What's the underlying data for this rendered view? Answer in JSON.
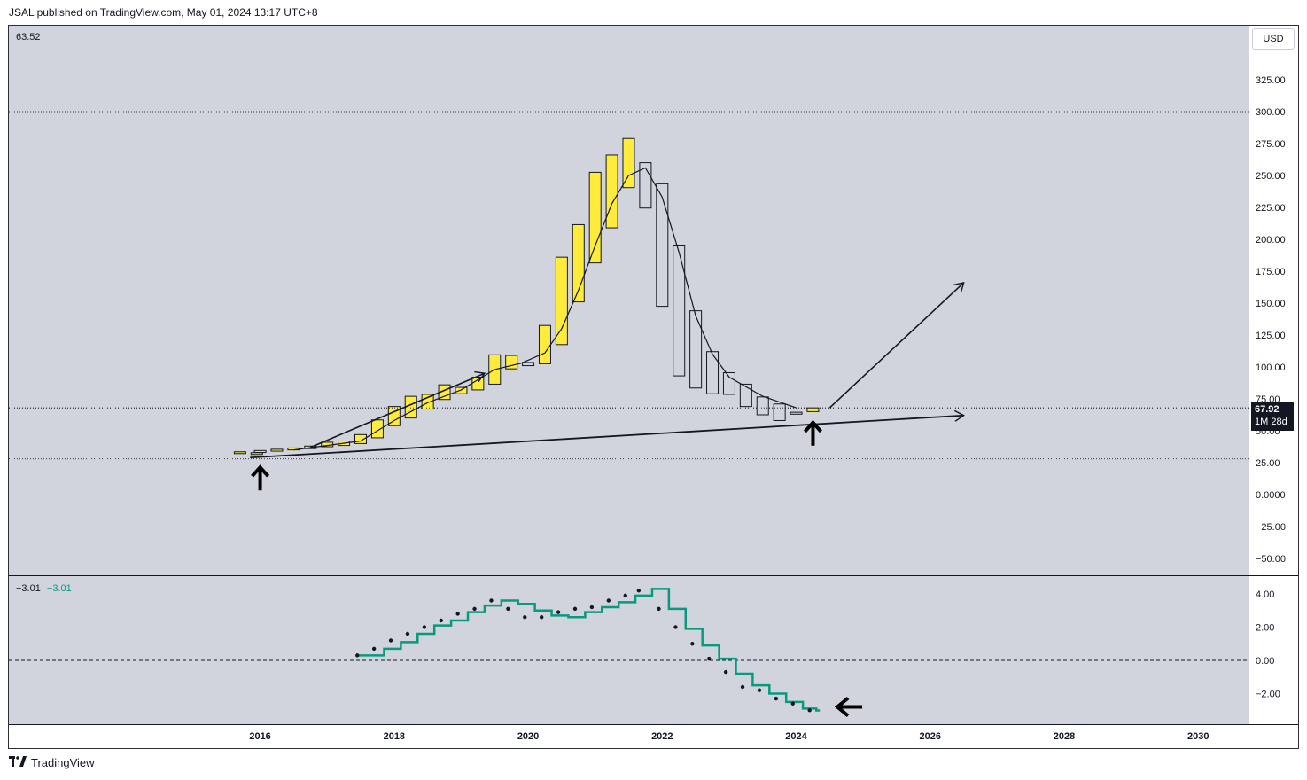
{
  "header": {
    "publish_line": "JSAL published on TradingView.com, May 01, 2024 13:17 UTC+8"
  },
  "footer": {
    "brand_mark": "𝟭𝟳",
    "brand_name": "TradingView"
  },
  "main_pane": {
    "top_left_value": "63.52",
    "currency": "USD",
    "last_price": "67.92",
    "countdown": "1M  28d",
    "dotted_levels": [
      300,
      67.92,
      28
    ]
  },
  "indicator_pane": {
    "value_1": "−3.01",
    "value_2": "−3.01",
    "zero_line": 0
  },
  "colors": {
    "pane_bg": "#d1d4dc",
    "bull_fill": "#ffeb3b",
    "bear_fill": "#d1d4dc",
    "candle_border": "#131722",
    "signal_line": "#089981",
    "dots": "#131722",
    "indicator_value": "#089981"
  },
  "chart_data": [
    {
      "type": "candlestick",
      "title": "",
      "interval": "1M",
      "y_axis": {
        "ticks": [
          {
            "v": 325,
            "label": "325.00"
          },
          {
            "v": 300,
            "label": "300.00"
          },
          {
            "v": 275,
            "label": "275.00"
          },
          {
            "v": 250,
            "label": "250.00"
          },
          {
            "v": 225,
            "label": "225.00"
          },
          {
            "v": 200,
            "label": "200.00"
          },
          {
            "v": 175,
            "label": "175.00"
          },
          {
            "v": 150,
            "label": "150.00"
          },
          {
            "v": 125,
            "label": "125.00"
          },
          {
            "v": 100,
            "label": "100.00"
          },
          {
            "v": 75,
            "label": "75.00"
          },
          {
            "v": 50,
            "label": "50.00"
          },
          {
            "v": 25,
            "label": "25.00"
          },
          {
            "v": 0,
            "label": "0.0000"
          },
          {
            "v": -25,
            "label": "−25.00"
          },
          {
            "v": -50,
            "label": "−50.00"
          }
        ],
        "range": [
          -65,
          362
        ]
      },
      "x_axis": {
        "ticks": [
          {
            "v": 2016,
            "label": "2016"
          },
          {
            "v": 2018,
            "label": "2018"
          },
          {
            "v": 2020,
            "label": "2020"
          },
          {
            "v": 2022,
            "label": "2022"
          },
          {
            "v": 2024,
            "label": "2024"
          },
          {
            "v": 2026,
            "label": "2026"
          },
          {
            "v": 2028,
            "label": "2028"
          },
          {
            "v": 2030,
            "label": "2030"
          }
        ],
        "range": [
          2012.25,
          2030.75
        ]
      },
      "candles": [
        {
          "t": 2015.7,
          "o": 33.5,
          "c": 33.5
        },
        {
          "t": 2015.95,
          "o": 32.5,
          "c": 32.8
        },
        {
          "t": 2016.0,
          "o": 33.0,
          "c": 34.5
        },
        {
          "t": 2016.25,
          "o": 34.0,
          "c": 35.5
        },
        {
          "t": 2016.5,
          "o": 35.0,
          "c": 36.5
        },
        {
          "t": 2016.75,
          "o": 36.0,
          "c": 38.0
        },
        {
          "t": 2017.0,
          "o": 37.5,
          "c": 41.0
        },
        {
          "t": 2017.25,
          "o": 38.5,
          "c": 42.0
        },
        {
          "t": 2017.5,
          "o": 40.0,
          "c": 47.0
        },
        {
          "t": 2017.75,
          "o": 44.5,
          "c": 58.5
        },
        {
          "t": 2018.0,
          "o": 54.0,
          "c": 69.0
        },
        {
          "t": 2018.25,
          "o": 60.0,
          "c": 77.0
        },
        {
          "t": 2018.5,
          "o": 67.0,
          "c": 78.5
        },
        {
          "t": 2018.75,
          "o": 74.5,
          "c": 86.0
        },
        {
          "t": 2019.0,
          "o": 79.0,
          "c": 84.0
        },
        {
          "t": 2019.25,
          "o": 82.0,
          "c": 92.0
        },
        {
          "t": 2019.5,
          "o": 86.5,
          "c": 109.5
        },
        {
          "t": 2019.75,
          "o": 98.5,
          "c": 109.0
        },
        {
          "t": 2020.0,
          "o": 103.5,
          "c": 101.0
        },
        {
          "t": 2020.25,
          "o": 102.5,
          "c": 132.5
        },
        {
          "t": 2020.5,
          "o": 117.5,
          "c": 186.0
        },
        {
          "t": 2020.75,
          "o": 151.0,
          "c": 211.5
        },
        {
          "t": 2021.0,
          "o": 181.5,
          "c": 252.5
        },
        {
          "t": 2021.25,
          "o": 209.0,
          "c": 266.0
        },
        {
          "t": 2021.5,
          "o": 240.5,
          "c": 279.0
        },
        {
          "t": 2021.75,
          "o": 260.0,
          "c": 224.5
        },
        {
          "t": 2022.0,
          "o": 243.5,
          "c": 147.5
        },
        {
          "t": 2022.25,
          "o": 195.5,
          "c": 93.0
        },
        {
          "t": 2022.5,
          "o": 144.0,
          "c": 83.5
        },
        {
          "t": 2022.75,
          "o": 112.0,
          "c": 79.0
        },
        {
          "t": 2023.0,
          "o": 95.5,
          "c": 78.5
        },
        {
          "t": 2023.25,
          "o": 86.5,
          "c": 69.0
        },
        {
          "t": 2023.5,
          "o": 76.5,
          "c": 62.5
        },
        {
          "t": 2023.75,
          "o": 71.0,
          "c": 58.0
        },
        {
          "t": 2024.0,
          "o": 64.5,
          "c": 63.0
        },
        {
          "t": 2024.25,
          "o": 65.0,
          "c": 67.92
        }
      ],
      "moving_average": [
        {
          "t": 2016.5,
          "v": 35
        },
        {
          "t": 2017.5,
          "v": 42
        },
        {
          "t": 2018.0,
          "v": 58
        },
        {
          "t": 2018.5,
          "v": 72
        },
        {
          "t": 2019.0,
          "v": 82
        },
        {
          "t": 2019.5,
          "v": 98
        },
        {
          "t": 2019.9,
          "v": 103
        },
        {
          "t": 2020.25,
          "v": 111
        },
        {
          "t": 2020.5,
          "v": 130
        },
        {
          "t": 2020.75,
          "v": 160
        },
        {
          "t": 2021.0,
          "v": 195
        },
        {
          "t": 2021.25,
          "v": 228
        },
        {
          "t": 2021.5,
          "v": 250
        },
        {
          "t": 2021.75,
          "v": 256
        },
        {
          "t": 2022.0,
          "v": 233
        },
        {
          "t": 2022.25,
          "v": 190
        },
        {
          "t": 2022.5,
          "v": 140
        },
        {
          "t": 2022.75,
          "v": 110
        },
        {
          "t": 2023.0,
          "v": 92
        },
        {
          "t": 2023.5,
          "v": 77
        },
        {
          "t": 2024.0,
          "v": 68
        }
      ],
      "annotations": {
        "trendline": {
          "from": [
            2015.85,
            29
          ],
          "to": [
            2026.5,
            62
          ]
        },
        "arrows": [
          {
            "from": [
              2016.75,
              37
            ],
            "to": [
              2019.35,
              95
            ]
          },
          {
            "from": [
              2024.5,
              68
            ],
            "to": [
              2026.5,
              166
            ]
          }
        ],
        "up_arrows": [
          {
            "t": 2016.0,
            "v": 20
          },
          {
            "t": 2024.25,
            "v": 55
          }
        ]
      }
    },
    {
      "type": "line",
      "title": "",
      "y_axis": {
        "ticks": [
          {
            "v": 4,
            "label": "4.00"
          },
          {
            "v": 2,
            "label": "2.00"
          },
          {
            "v": 0,
            "label": "0.00"
          },
          {
            "v": -2,
            "label": "−2.00"
          }
        ],
        "range": [
          -3.8,
          5.2
        ]
      },
      "series": [
        {
          "style": "step",
          "values": [
            {
              "t": 2017.6,
              "v": 0.3
            },
            {
              "t": 2017.85,
              "v": 0.7
            },
            {
              "t": 2018.1,
              "v": 1.1
            },
            {
              "t": 2018.35,
              "v": 1.6
            },
            {
              "t": 2018.6,
              "v": 2.1
            },
            {
              "t": 2018.85,
              "v": 2.4
            },
            {
              "t": 2019.1,
              "v": 2.9
            },
            {
              "t": 2019.35,
              "v": 3.3
            },
            {
              "t": 2019.6,
              "v": 3.6
            },
            {
              "t": 2019.85,
              "v": 3.4
            },
            {
              "t": 2020.1,
              "v": 3.0
            },
            {
              "t": 2020.35,
              "v": 2.7
            },
            {
              "t": 2020.6,
              "v": 2.6
            },
            {
              "t": 2020.85,
              "v": 2.9
            },
            {
              "t": 2021.1,
              "v": 3.2
            },
            {
              "t": 2021.35,
              "v": 3.5
            },
            {
              "t": 2021.6,
              "v": 3.9
            },
            {
              "t": 2021.85,
              "v": 4.3
            },
            {
              "t": 2022.1,
              "v": 3.1
            },
            {
              "t": 2022.35,
              "v": 1.9
            },
            {
              "t": 2022.6,
              "v": 0.9
            },
            {
              "t": 2022.85,
              "v": 0.1
            },
            {
              "t": 2023.1,
              "v": -0.8
            },
            {
              "t": 2023.35,
              "v": -1.5
            },
            {
              "t": 2023.6,
              "v": -2.0
            },
            {
              "t": 2023.85,
              "v": -2.5
            },
            {
              "t": 2024.1,
              "v": -2.9
            },
            {
              "t": 2024.3,
              "v": -3.01
            }
          ]
        },
        {
          "style": "dots",
          "values": [
            {
              "t": 2017.45,
              "v": 0.3
            },
            {
              "t": 2017.7,
              "v": 0.7
            },
            {
              "t": 2017.95,
              "v": 1.2
            },
            {
              "t": 2018.2,
              "v": 1.6
            },
            {
              "t": 2018.45,
              "v": 2.0
            },
            {
              "t": 2018.7,
              "v": 2.4
            },
            {
              "t": 2018.95,
              "v": 2.8
            },
            {
              "t": 2019.2,
              "v": 3.1
            },
            {
              "t": 2019.45,
              "v": 3.6
            },
            {
              "t": 2019.7,
              "v": 3.1
            },
            {
              "t": 2019.95,
              "v": 2.6
            },
            {
              "t": 2020.2,
              "v": 2.6
            },
            {
              "t": 2020.45,
              "v": 2.9
            },
            {
              "t": 2020.7,
              "v": 3.1
            },
            {
              "t": 2020.95,
              "v": 3.2
            },
            {
              "t": 2021.2,
              "v": 3.6
            },
            {
              "t": 2021.45,
              "v": 3.9
            },
            {
              "t": 2021.65,
              "v": 4.2
            },
            {
              "t": 2021.95,
              "v": 3.1
            },
            {
              "t": 2022.2,
              "v": 2.0
            },
            {
              "t": 2022.45,
              "v": 1.0
            },
            {
              "t": 2022.7,
              "v": 0.1
            },
            {
              "t": 2022.95,
              "v": -0.7
            },
            {
              "t": 2023.2,
              "v": -1.6
            },
            {
              "t": 2023.45,
              "v": -1.8
            },
            {
              "t": 2023.7,
              "v": -2.3
            },
            {
              "t": 2023.95,
              "v": -2.6
            },
            {
              "t": 2024.2,
              "v": -3.0
            }
          ]
        }
      ],
      "annotations": {
        "left_arrow": {
          "t": 2024.8,
          "v": -2.8
        }
      }
    }
  ]
}
